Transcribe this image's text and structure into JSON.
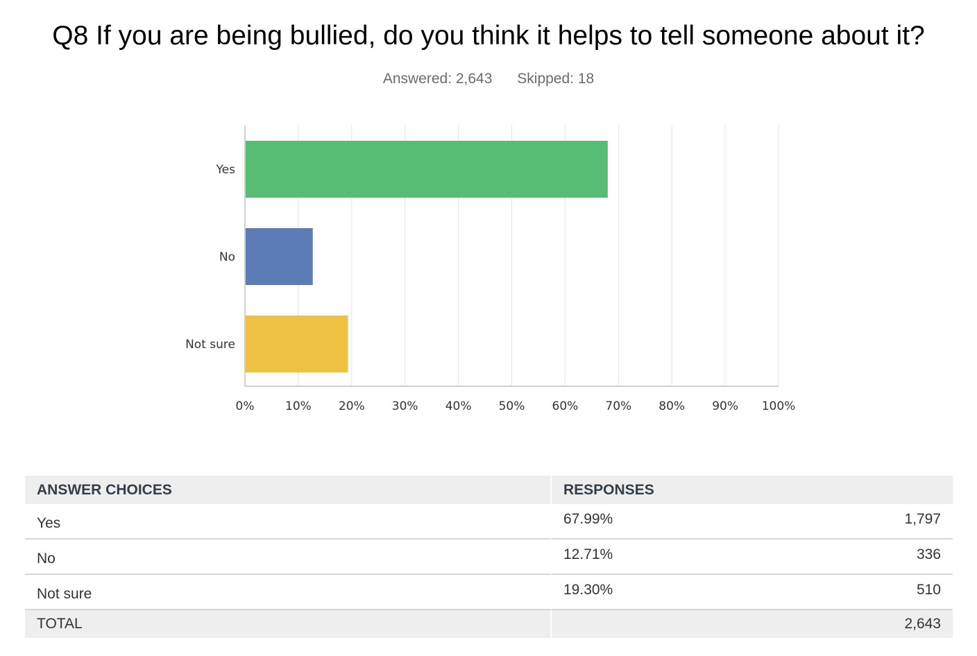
{
  "header": {
    "title": "Q8 If you are being bullied, do you think it helps to tell someone about it?",
    "answered": "Answered: 2,643",
    "skipped": "Skipped: 18"
  },
  "colors": {
    "yes": "#57bd75",
    "no": "#5b7cb4",
    "not_sure": "#efc140",
    "grid": "#e3e3e3",
    "axis": "#cfcfcf"
  },
  "chart_data": {
    "type": "bar",
    "orientation": "horizontal",
    "categories": [
      "Yes",
      "No",
      "Not sure"
    ],
    "values": [
      67.99,
      12.71,
      19.3
    ],
    "xlim": [
      0,
      100
    ],
    "xticks": [
      "0%",
      "10%",
      "20%",
      "30%",
      "40%",
      "50%",
      "60%",
      "70%",
      "80%",
      "90%",
      "100%"
    ],
    "grid": true,
    "legend": false
  },
  "table": {
    "headers": {
      "choices": "ANSWER CHOICES",
      "responses": "RESPONSES"
    },
    "rows": [
      {
        "choice": "Yes",
        "percent": "67.99%",
        "count": "1,797"
      },
      {
        "choice": "No",
        "percent": "12.71%",
        "count": "336"
      },
      {
        "choice": "Not sure",
        "percent": "19.30%",
        "count": "510"
      }
    ],
    "total": {
      "label": "TOTAL",
      "count": "2,643"
    }
  }
}
